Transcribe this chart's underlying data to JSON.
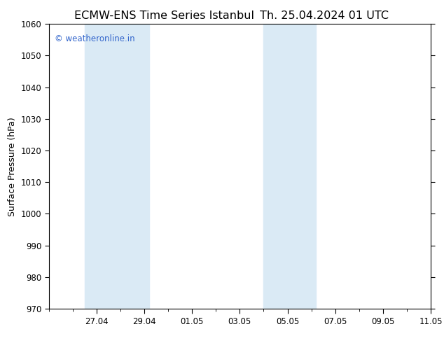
{
  "title_left": "ECMW-ENS Time Series Istanbul",
  "title_right": "Th. 25.04.2024 01 UTC",
  "ylabel": "Surface Pressure (hPa)",
  "ylim": [
    970,
    1060
  ],
  "ytick_step": 10,
  "xtick_labels": [
    "27.04",
    "29.04",
    "01.05",
    "03.05",
    "05.05",
    "07.05",
    "09.05",
    "11.05"
  ],
  "xtick_positions": [
    2,
    4,
    6,
    8,
    10,
    12,
    14,
    16
  ],
  "xlim": [
    0,
    16
  ],
  "shaded_bands": [
    {
      "start_day": 1.5,
      "end_day": 4.2,
      "color": "#daeaf5"
    },
    {
      "start_day": 9.0,
      "end_day": 11.2,
      "color": "#daeaf5"
    }
  ],
  "watermark": "© weatheronline.in",
  "watermark_color": "#3366cc",
  "background_color": "#ffffff",
  "plot_bg_color": "#ffffff",
  "title_fontsize": 11.5,
  "label_fontsize": 9,
  "tick_fontsize": 8.5,
  "watermark_fontsize": 8.5,
  "fig_width": 6.34,
  "fig_height": 4.9,
  "dpi": 100
}
